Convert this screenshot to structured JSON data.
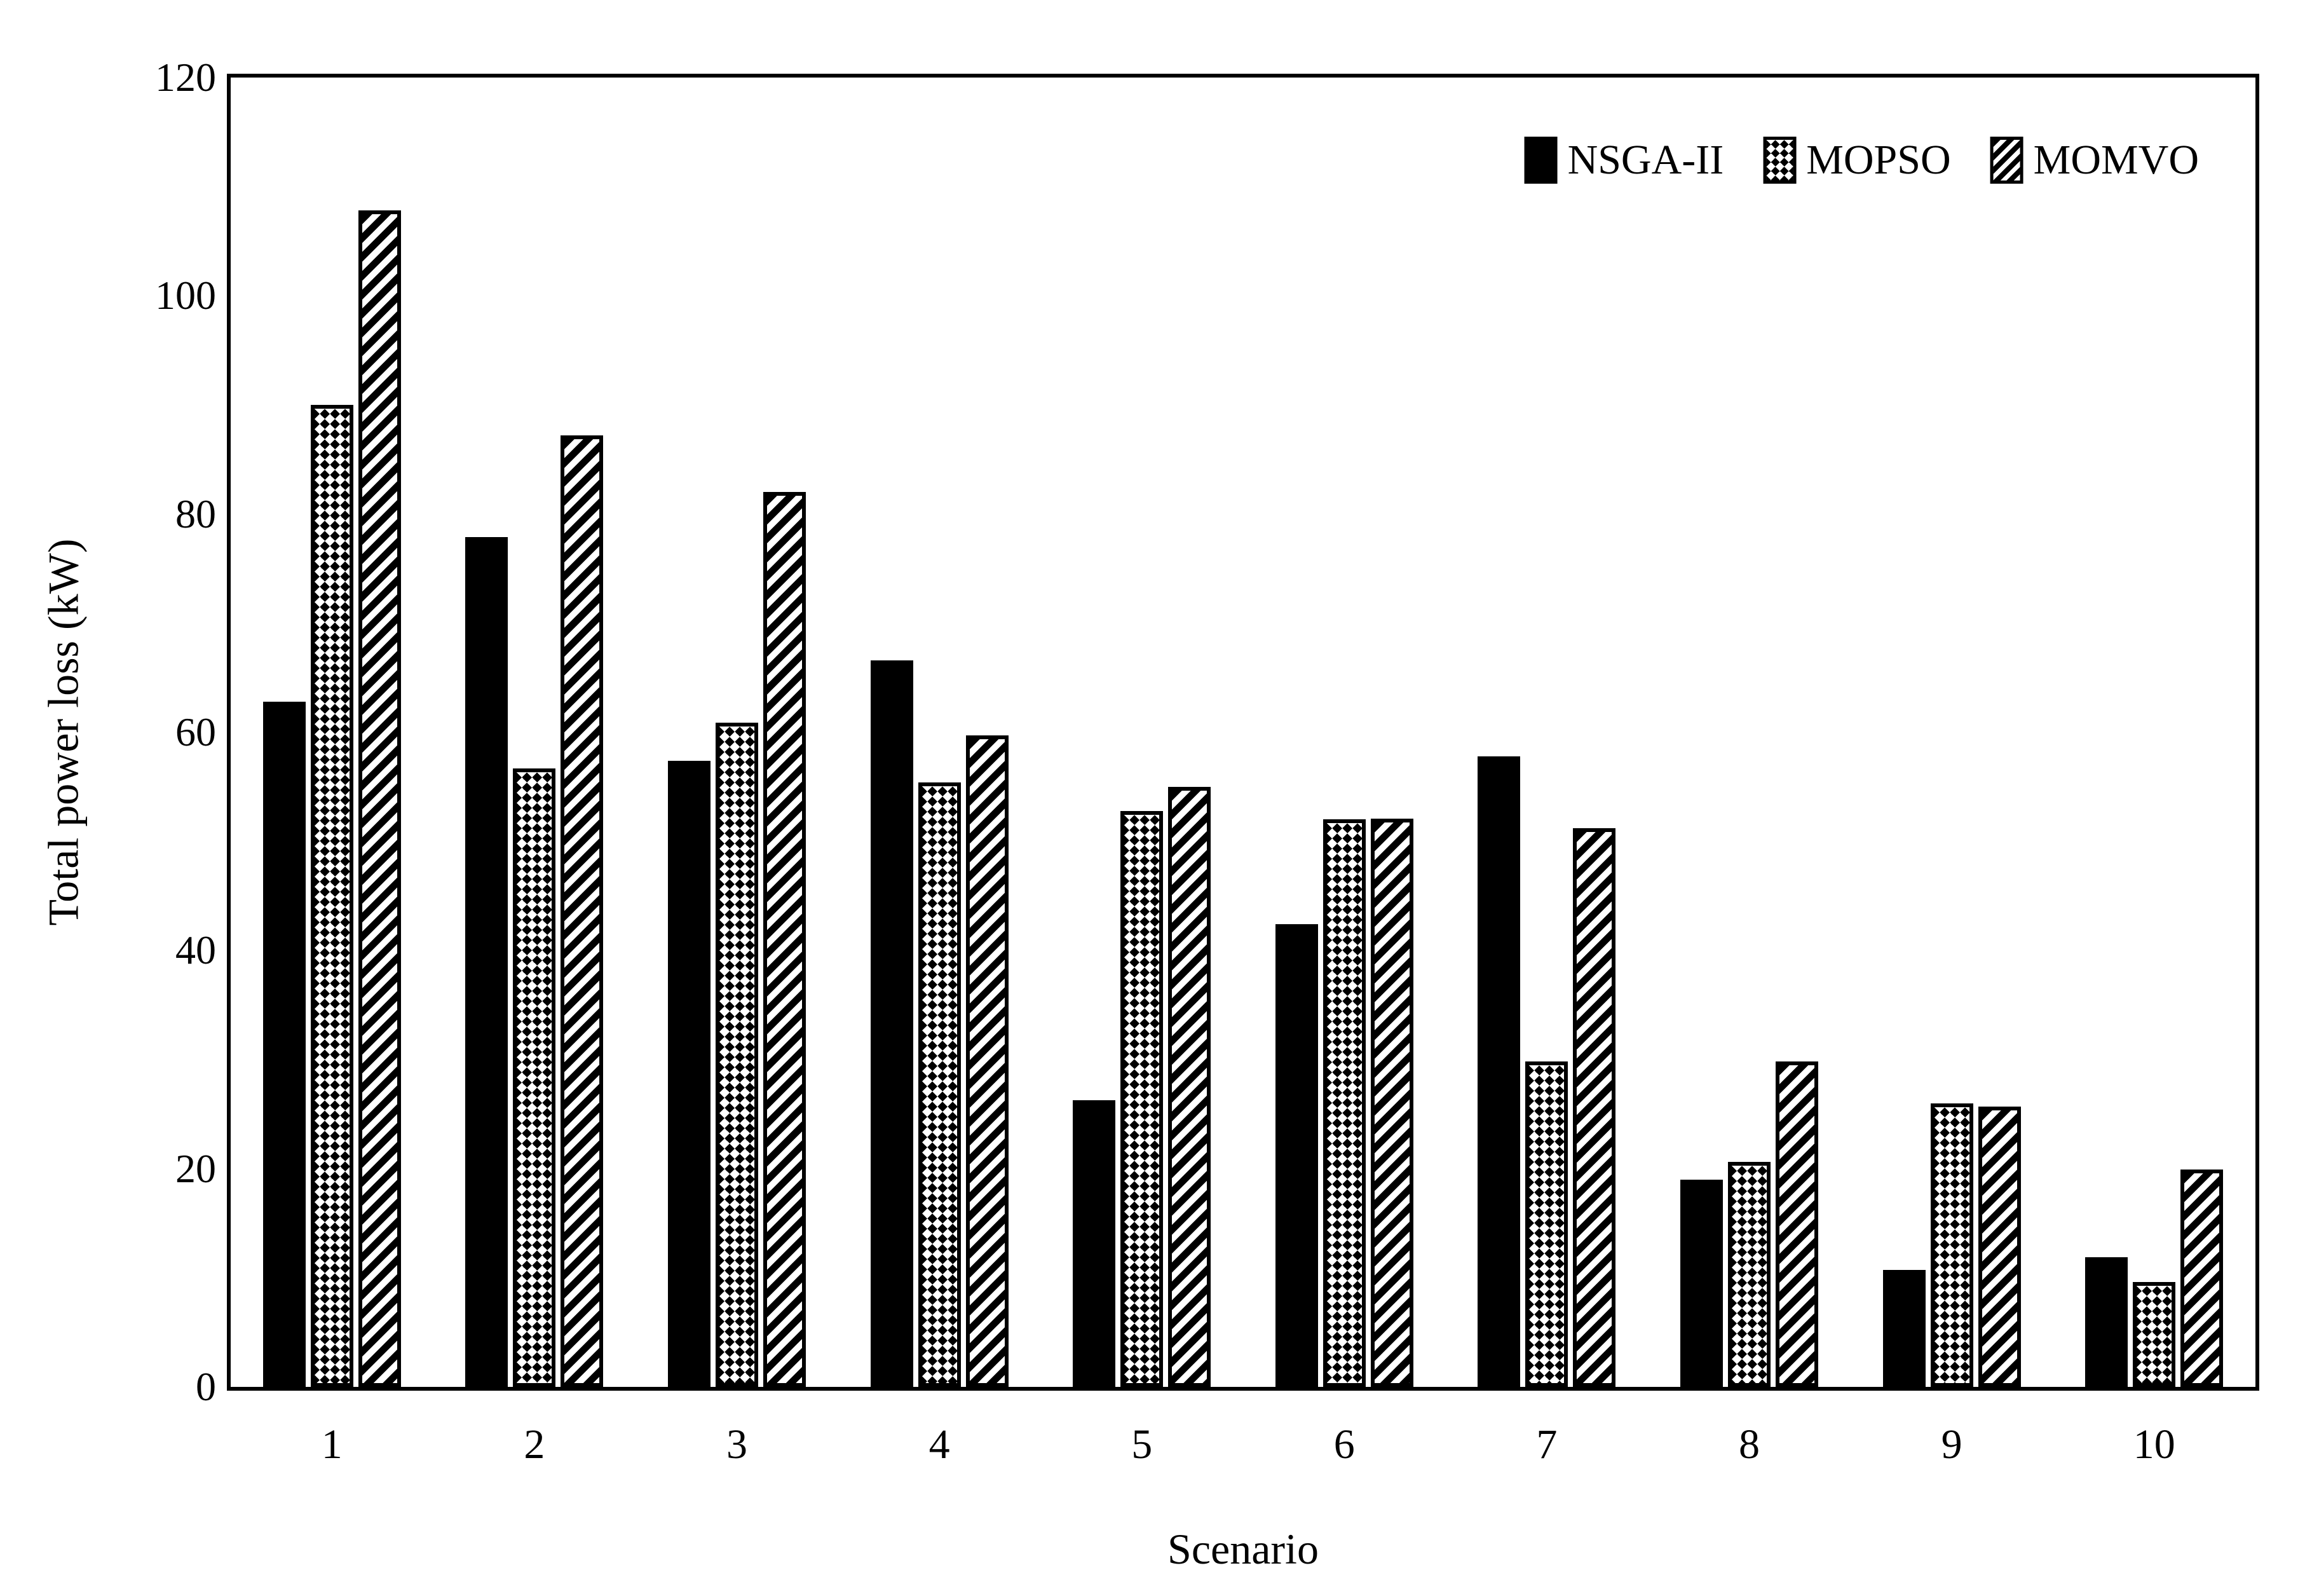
{
  "figure": {
    "background_color": "#ffffff",
    "ink_color": "#000000"
  },
  "chart_data": {
    "type": "bar",
    "title": "",
    "xlabel": "Scenario",
    "ylabel": "Total power loss (kW)",
    "ylim": [
      0,
      120
    ],
    "yticks": [
      0,
      20,
      40,
      60,
      80,
      100,
      120
    ],
    "grid": false,
    "legend_position": "top-right-inside",
    "categories": [
      "1",
      "2",
      "3",
      "4",
      "5",
      "6",
      "7",
      "8",
      "9",
      "10"
    ],
    "series": [
      {
        "name": "NSGA-II",
        "pattern": "solid",
        "values": [
          62.8,
          77.9,
          57.4,
          66.6,
          26.3,
          42.4,
          57.8,
          19.0,
          10.7,
          11.9
        ]
      },
      {
        "name": "MOPSO",
        "pattern": "checker",
        "values": [
          90.0,
          56.7,
          60.9,
          55.4,
          52.8,
          52.0,
          29.8,
          20.6,
          26.0,
          9.6
        ]
      },
      {
        "name": "MOMVO",
        "pattern": "diagonal-hatch",
        "values": [
          107.8,
          87.2,
          82.0,
          59.7,
          55.0,
          52.1,
          51.2,
          29.8,
          25.7,
          19.9
        ]
      }
    ]
  }
}
